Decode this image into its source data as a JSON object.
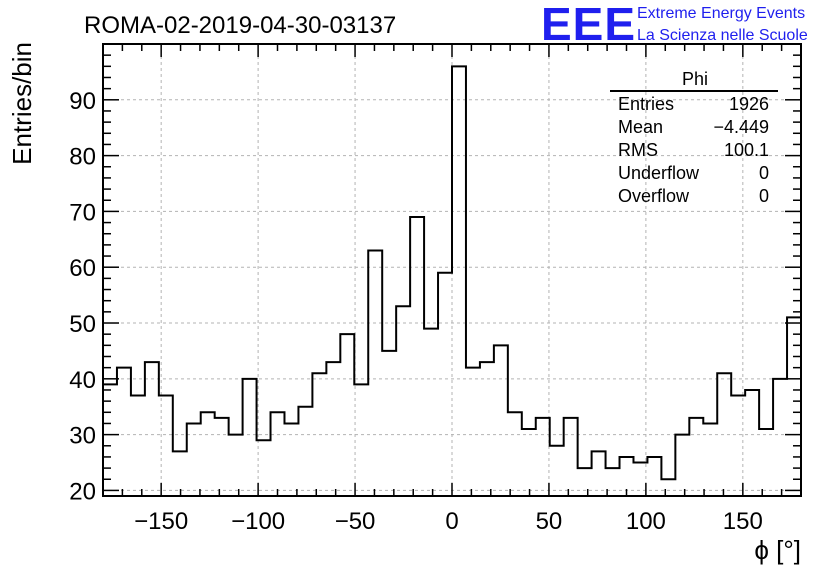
{
  "run_title": "ROMA-02-2019-04-30-03137",
  "logo": {
    "text": "EEE",
    "line1": "Extreme Energy Events",
    "line2": "La Scienza nelle Scuole",
    "color": "#1f1fee"
  },
  "stats": {
    "name": "Phi",
    "rows": [
      {
        "label": "Entries",
        "value": "1926"
      },
      {
        "label": "Mean",
        "value": "−4.449"
      },
      {
        "label": "RMS",
        "value": "100.1"
      },
      {
        "label": "Underflow",
        "value": "0"
      },
      {
        "label": "Overflow",
        "value": "0"
      }
    ]
  },
  "chart_data": {
    "type": "histogram",
    "title": "ROMA-02-2019-04-30-03137",
    "xlabel": "ϕ [°]",
    "ylabel": "Entries/bin",
    "xlim": [
      -180,
      180
    ],
    "ylim": [
      19,
      100
    ],
    "bin_width": 7.2,
    "x_ticks": [
      -150,
      -100,
      -50,
      0,
      50,
      100,
      150
    ],
    "x_tick_labels": [
      "−150",
      "−100",
      "−50",
      "0",
      "50",
      "100",
      "150"
    ],
    "y_ticks": [
      20,
      30,
      40,
      50,
      60,
      70,
      80,
      90
    ],
    "y_tick_labels": [
      "20",
      "30",
      "40",
      "50",
      "60",
      "70",
      "80",
      "90"
    ],
    "grid": true,
    "values": [
      39,
      42,
      37,
      43,
      37,
      27,
      32,
      34,
      33,
      30,
      40,
      29,
      34,
      32,
      35,
      41,
      43,
      48,
      39,
      63,
      45,
      53,
      69,
      49,
      59,
      96,
      42,
      43,
      46,
      34,
      31,
      33,
      28,
      33,
      24,
      27,
      24,
      26,
      25,
      26,
      22,
      30,
      33,
      32,
      41,
      37,
      38,
      31,
      40,
      51
    ]
  }
}
